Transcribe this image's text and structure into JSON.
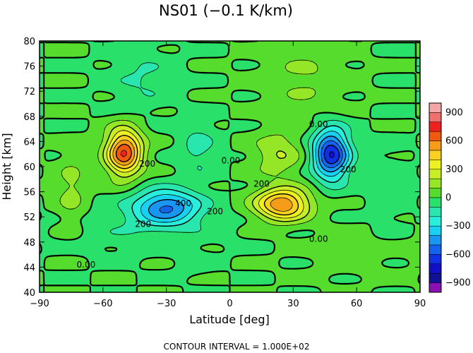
{
  "chart_data": {
    "type": "heatmap",
    "title": "NS01 (−0.1 K/km)",
    "xlabel": "Latitude [deg]",
    "ylabel": "Height [km]",
    "xlim": [
      -90,
      90
    ],
    "ylim": [
      40,
      80
    ],
    "x_ticks": [
      -90,
      -60,
      -30,
      0,
      30,
      60,
      90
    ],
    "y_ticks": [
      40,
      44,
      48,
      52,
      56,
      60,
      64,
      68,
      72,
      76,
      80
    ],
    "x_tick_labels": [
      "−90",
      "−60",
      "−30",
      "0",
      "30",
      "60",
      "90"
    ],
    "y_tick_labels": [
      "40",
      "44",
      "48",
      "52",
      "56",
      "60",
      "64",
      "68",
      "72",
      "76",
      "80"
    ],
    "colorbar": {
      "range": [
        -1000,
        1000
      ],
      "ticks": [
        900,
        600,
        300,
        0,
        -300,
        -600,
        -900
      ],
      "tick_labels": [
        "900",
        "600",
        "300",
        "0",
        "−300",
        "−600",
        "−900"
      ],
      "levels": [
        {
          "min": 900,
          "max": 1000,
          "color": "#f4a6a6"
        },
        {
          "min": 800,
          "max": 900,
          "color": "#f07070"
        },
        {
          "min": 700,
          "max": 800,
          "color": "#ee2020"
        },
        {
          "min": 600,
          "max": 700,
          "color": "#f05a10"
        },
        {
          "min": 500,
          "max": 600,
          "color": "#f59c18"
        },
        {
          "min": 400,
          "max": 500,
          "color": "#f8d020"
        },
        {
          "min": 300,
          "max": 400,
          "color": "#eef020"
        },
        {
          "min": 200,
          "max": 300,
          "color": "#c8ee28"
        },
        {
          "min": 100,
          "max": 200,
          "color": "#96e628"
        },
        {
          "min": 0,
          "max": 100,
          "color": "#55dc2c"
        },
        {
          "min": -100,
          "max": 0,
          "color": "#28e06a"
        },
        {
          "min": -200,
          "max": -100,
          "color": "#28e6ae"
        },
        {
          "min": -300,
          "max": -200,
          "color": "#28eede"
        },
        {
          "min": -400,
          "max": -300,
          "color": "#18d0f2"
        },
        {
          "min": -500,
          "max": -400,
          "color": "#1896f2"
        },
        {
          "min": -600,
          "max": -500,
          "color": "#1462ee"
        },
        {
          "min": -700,
          "max": -600,
          "color": "#1030e6"
        },
        {
          "min": -800,
          "max": -700,
          "color": "#1010c8"
        },
        {
          "min": -900,
          "max": -800,
          "color": "#101296"
        },
        {
          "min": -1000,
          "max": -900,
          "color": "#8a10b4"
        }
      ]
    },
    "field_components": [
      {
        "amp": 700,
        "lat": -50,
        "h": 62.3,
        "sx": 6,
        "sy": 2.6
      },
      {
        "amp": -500,
        "lat": -30,
        "h": 53.6,
        "sx": 11,
        "sy": 1.9
      },
      {
        "amp": -140,
        "lat": -15,
        "h": 63,
        "sx": 6,
        "sy": 3
      },
      {
        "amp": -80,
        "lat": -40,
        "h": 50,
        "sx": 25,
        "sy": 2.5
      },
      {
        "amp": 140,
        "lat": -75,
        "h": 56,
        "sx": 5,
        "sy": 4
      },
      {
        "amp": -110,
        "lat": -42,
        "h": 74,
        "sx": 10,
        "sy": 3.5
      },
      {
        "amp": -40,
        "lat": -17,
        "h": 44.5,
        "sx": 6,
        "sy": 1.5
      },
      {
        "amp": 600,
        "lat": 25,
        "h": 54,
        "sx": 9,
        "sy": 1.8
      },
      {
        "amp": -700,
        "lat": 48,
        "h": 62,
        "sx": 6,
        "sy": 2.8
      },
      {
        "amp": 200,
        "lat": 23,
        "h": 62,
        "sx": 8,
        "sy": 2.5
      },
      {
        "amp": 110,
        "lat": 35,
        "h": 74,
        "sx": 14,
        "sy": 4
      },
      {
        "amp": -60,
        "lat": 75,
        "h": 56,
        "sx": 6,
        "sy": 5
      },
      {
        "amp": 40,
        "lat": 60,
        "h": 46,
        "sx": 20,
        "sy": 3
      }
    ],
    "contour_interval": 100,
    "contour_labels": [
      {
        "text": "0.00",
        "lat": -68,
        "h": 44.3
      },
      {
        "text": "200",
        "lat": -41,
        "h": 50.8
      },
      {
        "text": "400",
        "lat": -22,
        "h": 54.1
      },
      {
        "text": "200",
        "lat": -7,
        "h": 52.8
      },
      {
        "text": "200",
        "lat": -39,
        "h": 60.4
      },
      {
        "text": "0.00",
        "lat": 0.5,
        "h": 60.9
      },
      {
        "text": "200",
        "lat": 15,
        "h": 57.2
      },
      {
        "text": "0.00",
        "lat": 42,
        "h": 66.7
      },
      {
        "text": "200",
        "lat": 56,
        "h": 59.5
      },
      {
        "text": "0.00",
        "lat": 42,
        "h": 48.4
      }
    ],
    "contour_interval_note": "CONTOUR INTERVAL = 1.000E+02"
  }
}
